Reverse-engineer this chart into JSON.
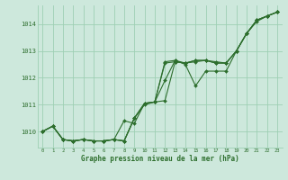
{
  "title": "Graphe pression niveau de la mer (hPa)",
  "background_color": "#cde8dc",
  "grid_color": "#9ecfb4",
  "line_color": "#2d6e2d",
  "marker_color": "#2d6e2d",
  "xlim": [
    -0.5,
    23.5
  ],
  "ylim": [
    1009.4,
    1014.7
  ],
  "yticks": [
    1010,
    1011,
    1012,
    1013,
    1014
  ],
  "xticks": [
    0,
    1,
    2,
    3,
    4,
    5,
    6,
    7,
    8,
    9,
    10,
    11,
    12,
    13,
    14,
    15,
    16,
    17,
    18,
    19,
    20,
    21,
    22,
    23
  ],
  "series": [
    [
      1010.0,
      1010.2,
      1009.7,
      1009.65,
      1009.7,
      1009.65,
      1009.65,
      1009.7,
      1009.65,
      1010.5,
      1011.0,
      1011.1,
      1011.9,
      1012.65,
      1012.5,
      1011.7,
      1012.25,
      1012.25,
      1012.25,
      1013.0,
      1013.65,
      1014.15,
      1014.3,
      1014.45
    ],
    [
      1010.0,
      1010.2,
      1009.7,
      1009.65,
      1009.7,
      1009.65,
      1009.65,
      1009.7,
      1010.4,
      1010.3,
      1011.05,
      1011.1,
      1011.15,
      1012.6,
      1012.55,
      1012.6,
      1012.65,
      1012.6,
      1012.55,
      1013.0,
      1013.65,
      1014.15,
      1014.3,
      1014.45
    ],
    [
      1010.0,
      1010.2,
      1009.7,
      1009.65,
      1009.7,
      1009.65,
      1009.65,
      1009.7,
      1009.65,
      1010.5,
      1011.05,
      1011.1,
      1012.6,
      1012.65,
      1012.55,
      1012.65,
      1012.65,
      1012.55,
      1012.55,
      1013.0,
      1013.65,
      1014.15,
      1014.3,
      1014.45
    ],
    [
      1010.0,
      1010.2,
      1009.7,
      1009.65,
      1009.7,
      1009.65,
      1009.65,
      1009.7,
      1009.65,
      1010.5,
      1011.05,
      1011.1,
      1012.55,
      1012.6,
      1012.55,
      1012.65,
      1012.65,
      1012.55,
      1012.55,
      1013.0,
      1013.65,
      1014.1,
      1014.3,
      1014.45
    ]
  ],
  "figsize": [
    3.2,
    2.0
  ],
  "dpi": 100
}
